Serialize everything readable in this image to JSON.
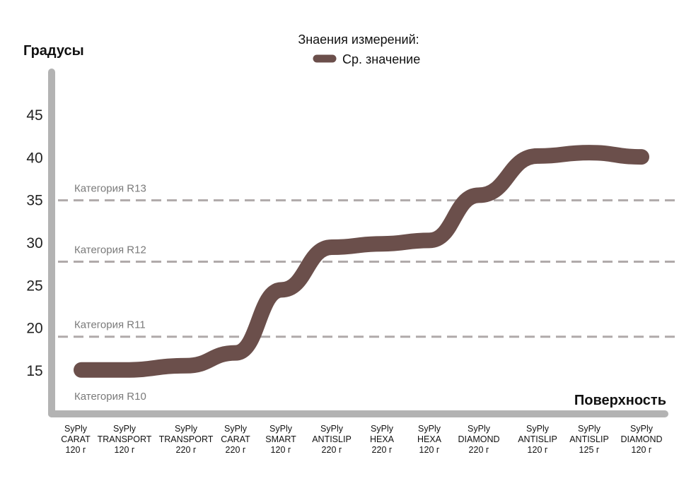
{
  "chart_data": {
    "type": "line",
    "ylabel": "Градусы",
    "xlabel": "Поверхность",
    "legend_title": "Знаения измерений:",
    "legend_position": "top-center",
    "ylim": [
      10.5,
      49
    ],
    "yticks": [
      15,
      20,
      25,
      30,
      35,
      40,
      45
    ],
    "categories": [
      [
        "SyPly",
        "CARAT",
        "120 г"
      ],
      [
        "SyPly",
        "TRANSPORT",
        "120 г"
      ],
      [
        "SyPly",
        "TRANSPORT",
        "220 г"
      ],
      [
        "SyPly",
        "CARAT",
        "220 г"
      ],
      [
        "SyPly",
        "SMART",
        "120 г"
      ],
      [
        "SyPly",
        "ANTISLIP",
        "220 г"
      ],
      [
        "SyPly",
        "HEXA",
        "220 г"
      ],
      [
        "SyPly",
        "HEXA",
        "120 г"
      ],
      [
        "SyPly",
        "DIAMOND",
        "220 г"
      ],
      [
        "SyPly",
        "ANTISLIP",
        "120 г"
      ],
      [
        "SyPly",
        "ANTISLIP",
        "125 г"
      ],
      [
        "SyPly",
        "DIAMOND",
        "120 г"
      ]
    ],
    "series": [
      {
        "name": "Ср. значение",
        "color": "#6b4f4b",
        "values": [
          15.1,
          15.1,
          15.6,
          17.1,
          24.5,
          29.5,
          29.9,
          30.3,
          35.6,
          40.2,
          40.6,
          40.1
        ]
      }
    ],
    "reference_lines": [
      {
        "label": "Категория R13",
        "value": 35
      },
      {
        "label": "Категория R12",
        "value": 27.8
      },
      {
        "label": "Категория R11",
        "value": 19
      }
    ],
    "bottom_category_label": "Категория R10",
    "colors": {
      "axis": "#b3b3b3",
      "reference": "#b0aaaa",
      "line": "#6b4f4b"
    }
  }
}
